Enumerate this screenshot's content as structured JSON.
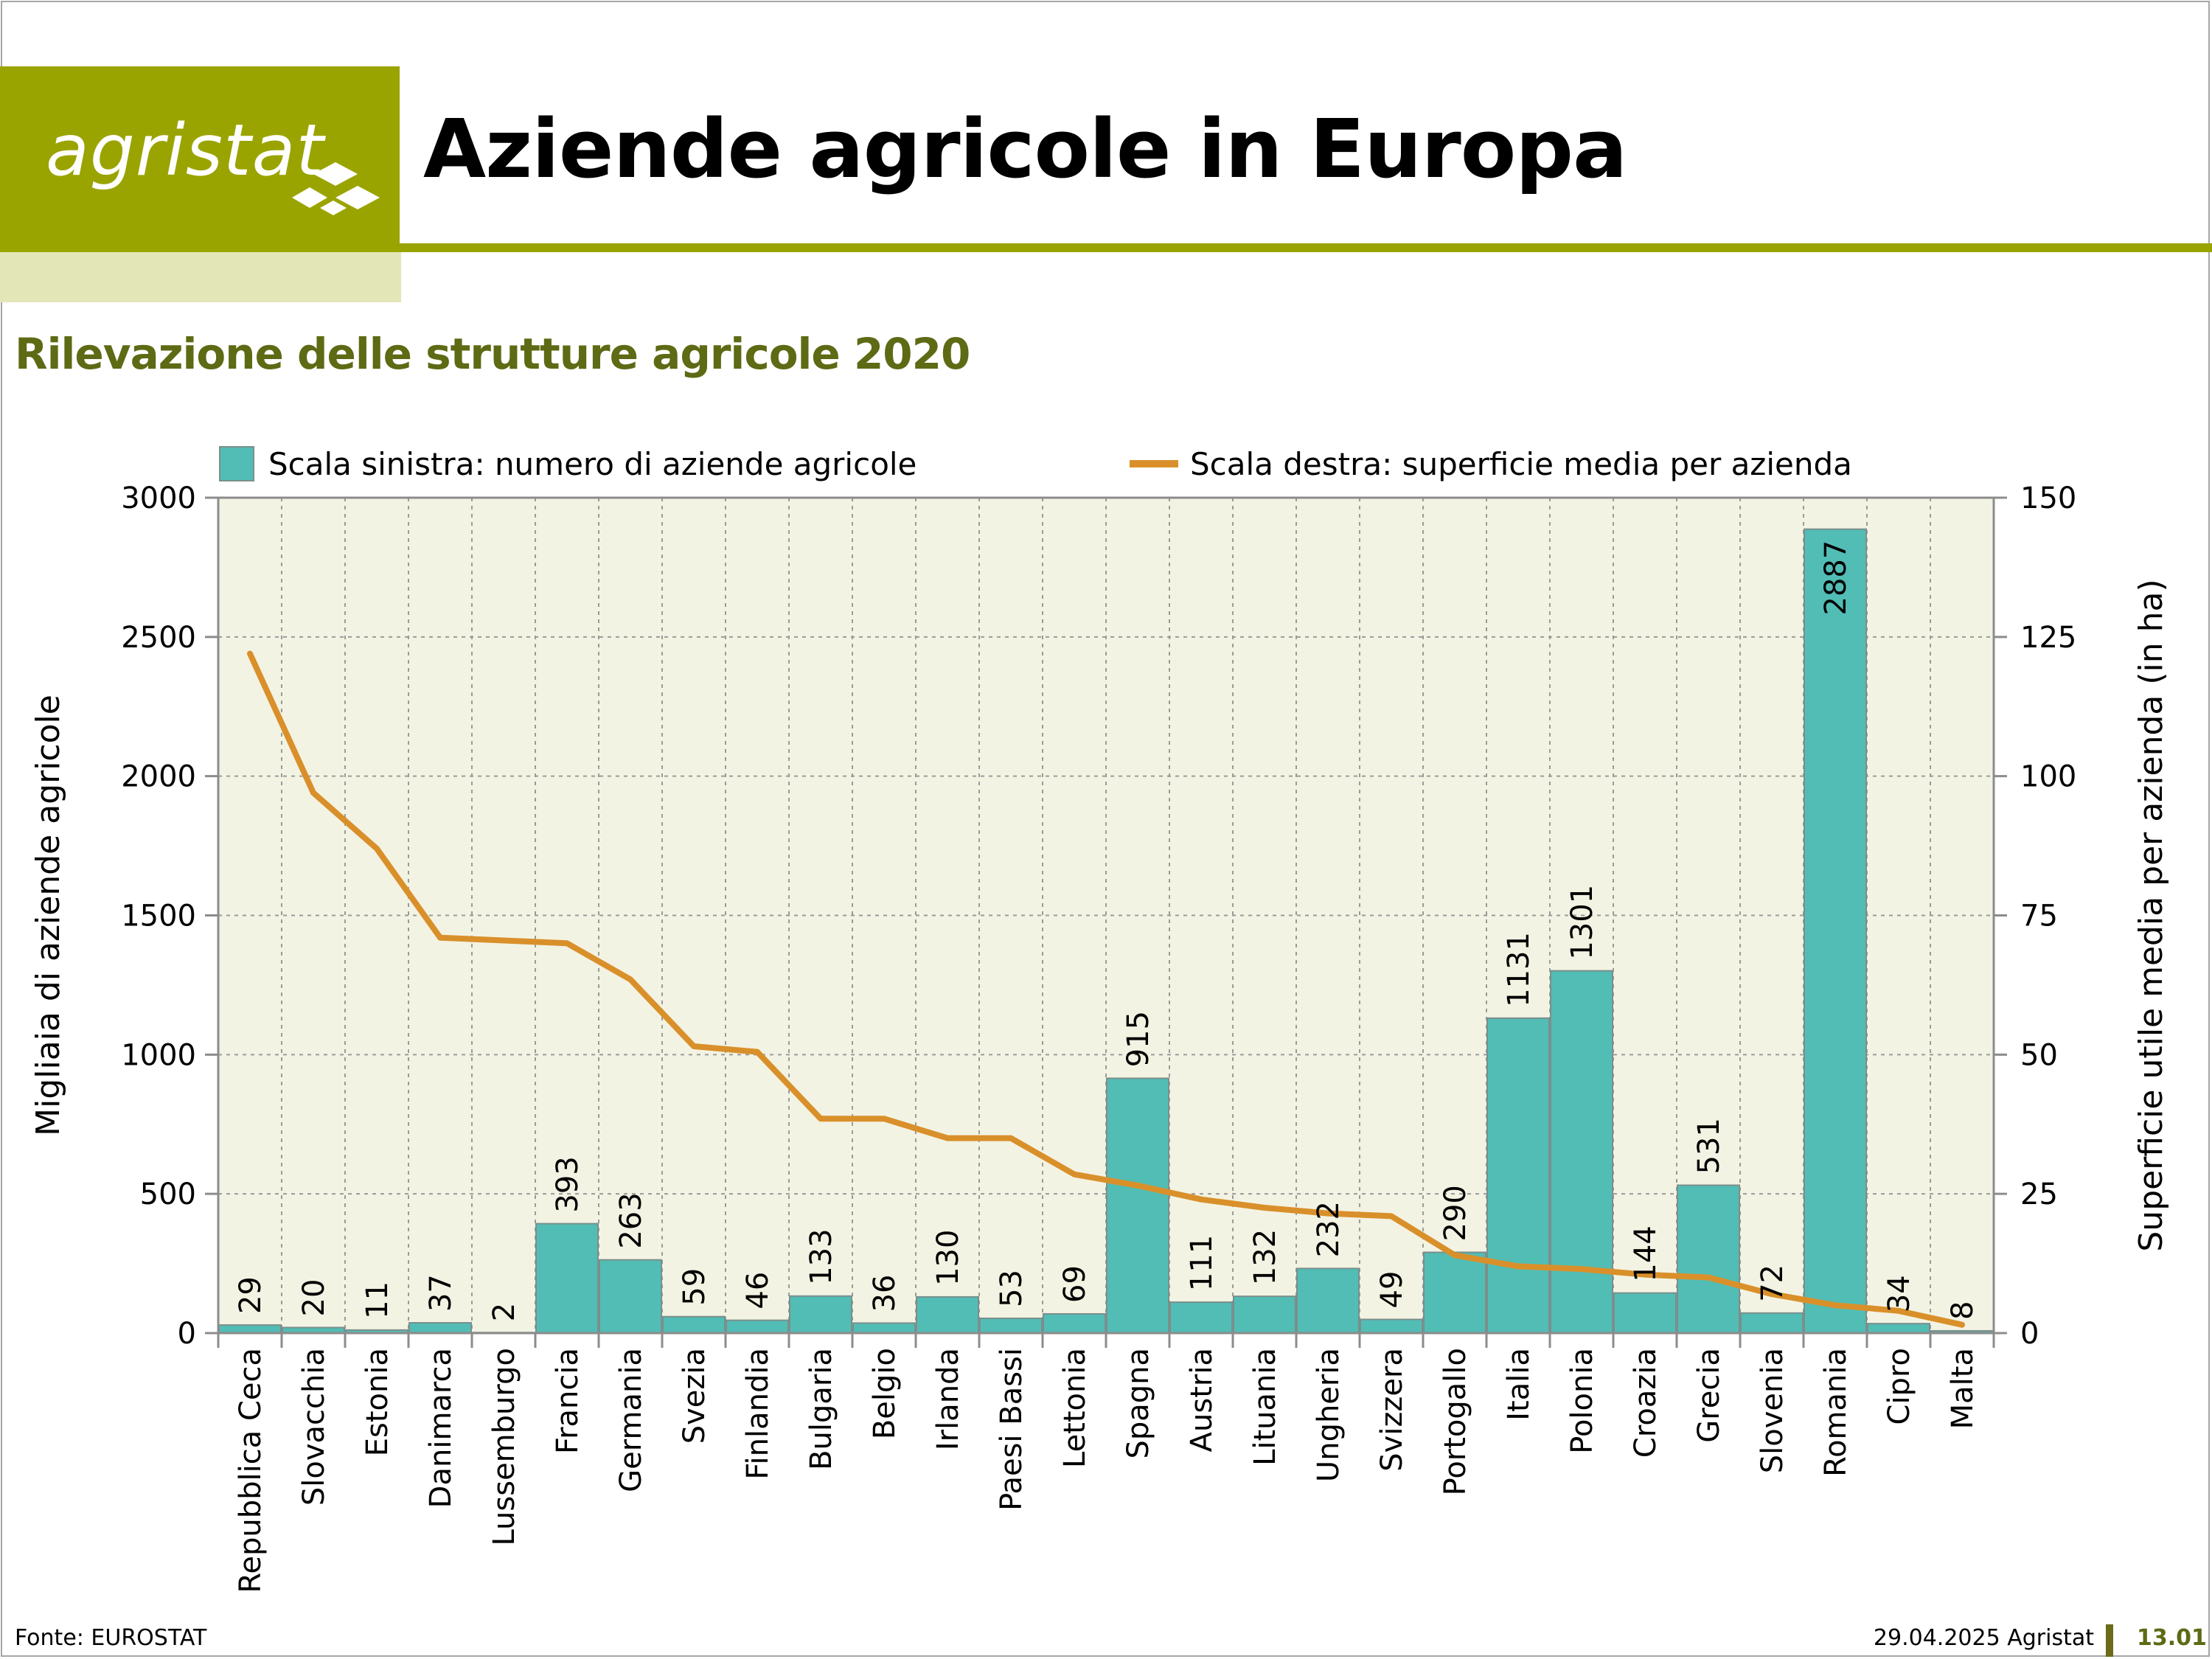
{
  "header": {
    "logo_text": "agristat",
    "title": "Aziende agricole in Europa",
    "subtitle": "Rilevazione delle strutture agricole 2020"
  },
  "footer": {
    "source": "Fonte: EUROSTAT",
    "date": "29.04.2025 Agristat",
    "page": "13.01"
  },
  "colors": {
    "brand": "#9aa400",
    "bar": "#52bdb5",
    "line": "#d9902a",
    "plot_bg": "#f3f3e3"
  },
  "chart_data": {
    "type": "bar",
    "categories": [
      "Repubblica Ceca",
      "Slovacchia",
      "Estonia",
      "Danimarca",
      "Lussemburgo",
      "Francia",
      "Germania",
      "Svezia",
      "Finlandia",
      "Bulgaria",
      "Belgio",
      "Irlanda",
      "Paesi Bassi",
      "Lettonia",
      "Spagna",
      "Austria",
      "Lituania",
      "Ungheria",
      "Svizzera",
      "Portogallo",
      "Italia",
      "Polonia",
      "Croazia",
      "Grecia",
      "Slovenia",
      "Romania",
      "Cipro",
      "Malta"
    ],
    "series": [
      {
        "name": "Scala sinistra: numero di aziende agricole",
        "type": "bar",
        "axis": "left",
        "values": [
          29,
          20,
          11,
          37,
          2,
          393,
          263,
          59,
          46,
          133,
          36,
          130,
          53,
          69,
          915,
          111,
          132,
          232,
          49,
          290,
          1131,
          1301,
          144,
          531,
          72,
          2887,
          34,
          8
        ]
      },
      {
        "name": "Scala destra: superficie media per azienda",
        "type": "line",
        "axis": "right",
        "values": [
          122,
          97,
          87,
          71,
          70.5,
          70,
          63.5,
          51.5,
          50.5,
          38.5,
          38.5,
          35,
          35,
          28.5,
          26.5,
          24,
          22.5,
          21.5,
          21,
          14,
          12,
          11.5,
          10.5,
          10,
          7,
          5,
          4,
          1.5
        ]
      }
    ],
    "ylabel": "Migliaia di aziende agricole",
    "y2label": "Superficie utile media per azienda (in ha)",
    "ylim": [
      0,
      3000
    ],
    "y2lim": [
      0,
      150
    ],
    "yticks": [
      0,
      500,
      1000,
      1500,
      2000,
      2500,
      3000
    ],
    "y2ticks": [
      0,
      25,
      50,
      75,
      100,
      125,
      150
    ],
    "grid": true,
    "legend": "top"
  }
}
